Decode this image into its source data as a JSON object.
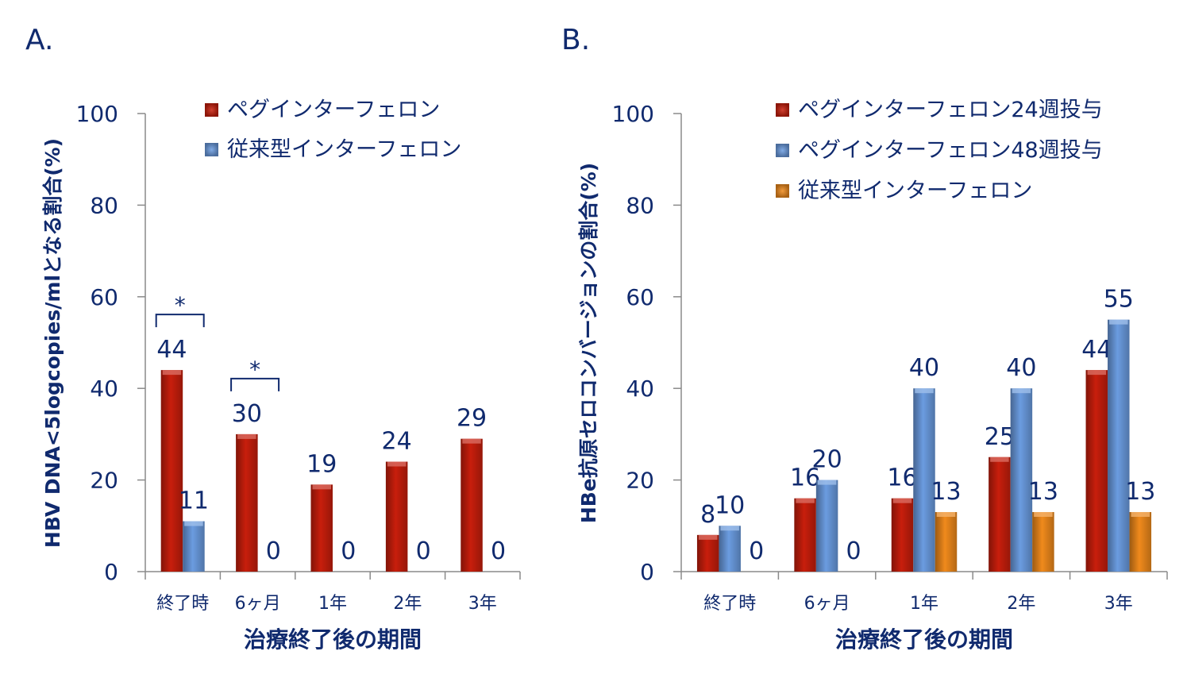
{
  "chart_data": [
    {
      "panel_label": "A.",
      "type": "bar",
      "title": "",
      "xlabel": "治療終了後の期間",
      "ylabel": "HBV DNA<5logcopies/mlとなる割合(%)",
      "ylim": [
        0,
        100
      ],
      "yticks": [
        0,
        20,
        40,
        60,
        80,
        100
      ],
      "categories": [
        "終了時",
        "6ヶ月",
        "1年",
        "2年",
        "3年"
      ],
      "series": [
        {
          "name": "ペグインターフェロン",
          "color": "#c81e0c",
          "values": [
            44,
            30,
            19,
            24,
            29
          ],
          "labels": [
            "44",
            "30",
            "19",
            "24",
            "29"
          ]
        },
        {
          "name": "従来型インターフェロン",
          "color": "#6b9ce0",
          "values": [
            11,
            0,
            0,
            0,
            0
          ],
          "labels": [
            "11",
            "0",
            "0",
            "0",
            "0"
          ]
        }
      ],
      "significance": [
        {
          "category": 0,
          "mark": "*"
        },
        {
          "category": 1,
          "mark": "*"
        }
      ],
      "legend": "top-right",
      "grid": false
    },
    {
      "panel_label": "B.",
      "type": "bar",
      "title": "",
      "xlabel": "治療終了後の期間",
      "ylabel": "HBe抗原セロコンバージョンの割合(%)",
      "ylim": [
        0,
        100
      ],
      "yticks": [
        0,
        20,
        40,
        60,
        80,
        100
      ],
      "categories": [
        "終了時",
        "6ヶ月",
        "1年",
        "2年",
        "3年"
      ],
      "series": [
        {
          "name": "ペグインターフェロン24週投与",
          "color": "#c81e0c",
          "values": [
            8,
            16,
            16,
            25,
            44
          ],
          "labels": [
            "8",
            "16",
            "16",
            "25",
            "44"
          ]
        },
        {
          "name": "ペグインターフェロン48週投与",
          "color": "#6b9ce0",
          "values": [
            10,
            20,
            40,
            40,
            55
          ],
          "labels": [
            "10",
            "20",
            "40",
            "40",
            "55"
          ]
        },
        {
          "name": "従来型インターフェロン",
          "color": "#f08a1c",
          "values": [
            0,
            0,
            13,
            13,
            13
          ],
          "labels": [
            "0",
            "0",
            "13",
            "13",
            "13"
          ]
        }
      ],
      "significance": [],
      "legend": "top-right",
      "grid": false
    }
  ]
}
